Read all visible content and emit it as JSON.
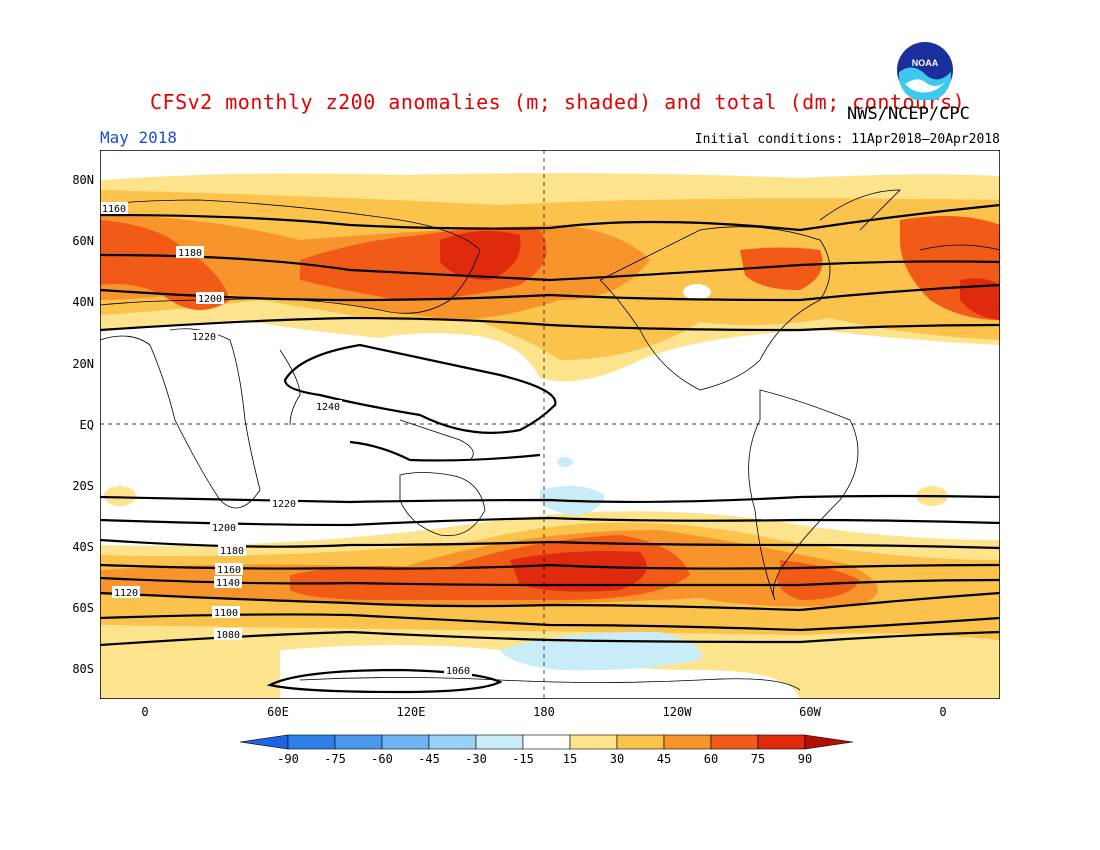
{
  "header": {
    "title": "CFSv2 monthly z200 anomalies (m; shaded) and total (dm; contours)",
    "month": "May 2018",
    "initial_conditions": "Initial conditions: 11Apr2018–20Apr2018",
    "organization": "NWS/NCEP/CPC",
    "logo_text": "NOAA"
  },
  "map": {
    "lat_labels": [
      "80N",
      "60N",
      "40N",
      "20N",
      "EQ",
      "20S",
      "40S",
      "60S",
      "80S"
    ],
    "lon_labels": [
      "0",
      "60E",
      "120E",
      "180",
      "120W",
      "60W",
      "0"
    ],
    "contour_labels": [
      "1160",
      "1180",
      "1200",
      "1220",
      "1240",
      "1220",
      "1200",
      "1180",
      "1160",
      "1140",
      "1120",
      "1100",
      "1080",
      "1060"
    ]
  },
  "colorbar": {
    "levels": [
      "-90",
      "-75",
      "-60",
      "-45",
      "-30",
      "-15",
      "15",
      "30",
      "45",
      "60",
      "75",
      "90"
    ],
    "colors": [
      "#1e64e6",
      "#2e7fea",
      "#4a98ee",
      "#6fb3f2",
      "#9ad2f6",
      "#c8ecf8",
      "#ffffff",
      "#fde48c",
      "#fbc24c",
      "#f7942c",
      "#f25a18",
      "#e02a0e",
      "#b01006"
    ]
  }
}
